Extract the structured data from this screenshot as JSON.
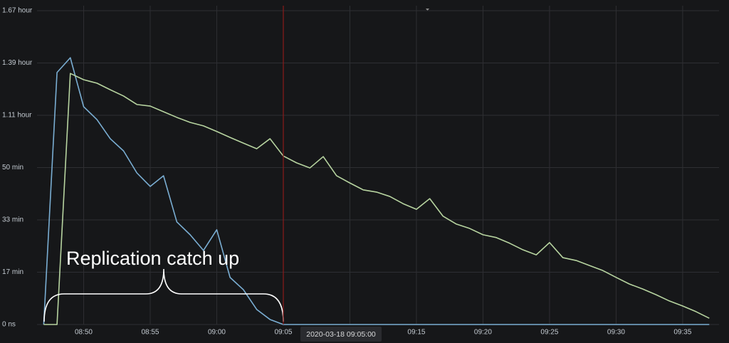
{
  "chart_data": {
    "type": "line",
    "x": [
      "08:47",
      "08:48",
      "08:49",
      "08:50",
      "08:51",
      "08:52",
      "08:53",
      "08:54",
      "08:55",
      "08:56",
      "08:57",
      "08:58",
      "08:59",
      "09:00",
      "09:01",
      "09:02",
      "09:03",
      "09:04",
      "09:05",
      "09:06",
      "09:07",
      "09:08",
      "09:09",
      "09:10",
      "09:11",
      "09:12",
      "09:13",
      "09:14",
      "09:15",
      "09:16",
      "09:17",
      "09:18",
      "09:19",
      "09:20",
      "09:21",
      "09:22",
      "09:23",
      "09:24",
      "09:25",
      "09:26",
      "09:27",
      "09:28",
      "09:29",
      "09:30",
      "09:31",
      "09:32",
      "09:33",
      "09:34",
      "09:35",
      "09:36",
      "09:37"
    ],
    "series": [
      {
        "color": "#7aaed3",
        "values": [
          0,
          80.3,
          85,
          69.4,
          65.3,
          59.2,
          55.3,
          48.3,
          44,
          47.4,
          32.7,
          28.6,
          23.6,
          30.2,
          15,
          11.1,
          4.8,
          1.6,
          0,
          0,
          0,
          0,
          0,
          0,
          0,
          0,
          0,
          0,
          0,
          0,
          0,
          0,
          0,
          0,
          0,
          0,
          0,
          0,
          0,
          0,
          0,
          0,
          0,
          0,
          0,
          0,
          0,
          0,
          0,
          0,
          0
        ]
      },
      {
        "color": "#b7d4a0",
        "values": [
          0,
          0,
          80,
          78,
          76.9,
          74.8,
          72.8,
          70.1,
          69.6,
          67.8,
          66,
          64.4,
          63.3,
          61.5,
          59.6,
          57.8,
          56,
          59.2,
          53.7,
          51.5,
          49.9,
          53.5,
          47.4,
          45.1,
          42.9,
          42.2,
          40.8,
          38.5,
          36.7,
          40.1,
          34.5,
          32,
          30.6,
          28.6,
          27.7,
          25.9,
          23.8,
          22.2,
          26.1,
          21.3,
          20.4,
          18.8,
          17.2,
          15,
          12.9,
          11.3,
          9.5,
          7.5,
          5.9,
          4.1,
          2
        ]
      }
    ],
    "xlim": [
      "08:46",
      "09:38"
    ],
    "xticks": [
      "08:50",
      "08:55",
      "09:00",
      "09:05",
      "09:10",
      "09:15",
      "09:20",
      "09:25",
      "09:30",
      "09:35"
    ],
    "ylim": [
      0,
      100
    ],
    "yticks": [
      {
        "value": 0,
        "label": "0 ns"
      },
      {
        "value": 16.67,
        "label": "17 min"
      },
      {
        "value": 33.33,
        "label": "33 min"
      },
      {
        "value": 50,
        "label": "50 min"
      },
      {
        "value": 66.67,
        "label": "1.11 hour"
      },
      {
        "value": 83.33,
        "label": "1.39 hour"
      },
      {
        "value": 100,
        "label": "1.67 hour"
      }
    ],
    "grid": true,
    "cursor": {
      "label": "2020-03-18 09:05:00",
      "color": "#8b1a1a"
    },
    "annotation": "Replication catch up"
  }
}
